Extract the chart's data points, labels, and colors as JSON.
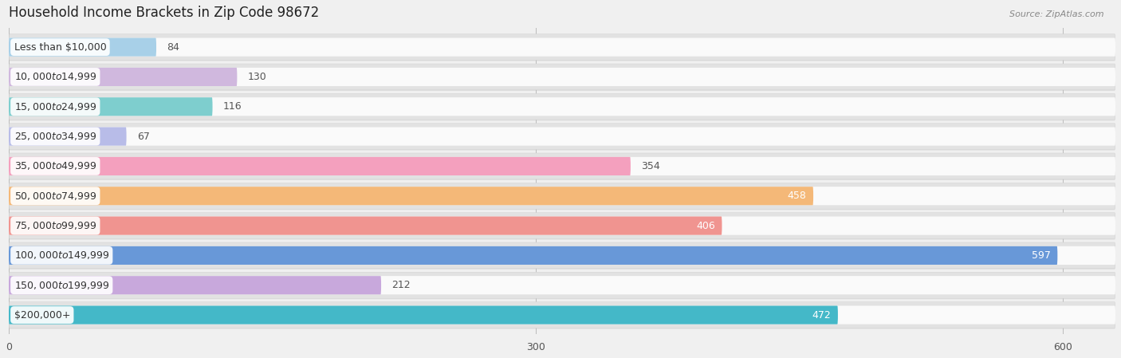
{
  "title": "Household Income Brackets in Zip Code 98672",
  "source": "Source: ZipAtlas.com",
  "categories": [
    "Less than $10,000",
    "$10,000 to $14,999",
    "$15,000 to $24,999",
    "$25,000 to $34,999",
    "$35,000 to $49,999",
    "$50,000 to $74,999",
    "$75,000 to $99,999",
    "$100,000 to $149,999",
    "$150,000 to $199,999",
    "$200,000+"
  ],
  "values": [
    84,
    130,
    116,
    67,
    354,
    458,
    406,
    597,
    212,
    472
  ],
  "bar_colors": [
    "#a8d0e8",
    "#d0b8de",
    "#7ecece",
    "#b8bce8",
    "#f4a0be",
    "#f4b878",
    "#f09490",
    "#6898d8",
    "#c8a8dc",
    "#44b8c8"
  ],
  "label_colors": [
    "#444444",
    "#444444",
    "#444444",
    "#444444",
    "#444444",
    "#ffffff",
    "#ffffff",
    "#ffffff",
    "#444444",
    "#ffffff"
  ],
  "xlim_max": 630,
  "xticks": [
    0,
    300,
    600
  ],
  "bg_color": "#f0f0f0",
  "row_bg_color": "#e8e8e8",
  "title_fontsize": 12,
  "label_fontsize": 9,
  "value_fontsize": 9
}
